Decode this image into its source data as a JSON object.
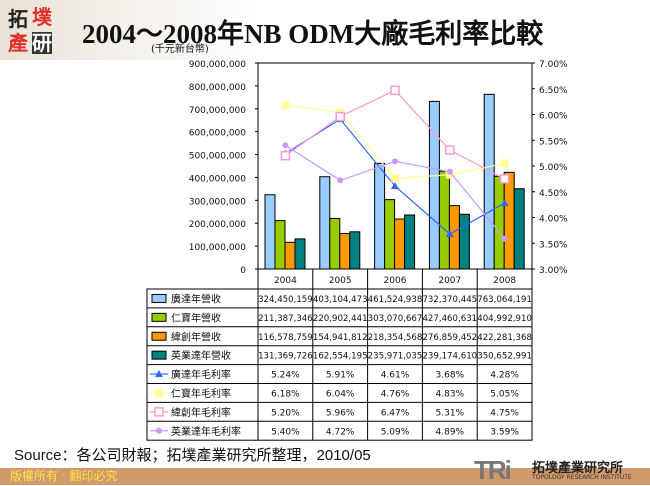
{
  "header": {
    "logo_text": "拓墣產研",
    "title": "2004～2008年NB ODM大廠毛利率比較"
  },
  "footer": {
    "source": "Source：各公司財報；拓墣產業研究所整理，2010/05",
    "copyright": "版權所有 ‧ 翻印必究",
    "institute_logo": "TRi",
    "institute_name": "拓墣產業研究所",
    "institute_name_en": "TOPOLOGY RESEARCH INSTITUTE"
  },
  "chart_data": {
    "type": "bar+line",
    "title": "2004～2008年NB ODM大廠毛利率比較",
    "ylabel": "(千元新台幣)",
    "ylim": [
      0,
      900000000
    ],
    "y2lim": [
      0.03,
      0.07
    ],
    "yticks": [
      "0",
      "100,000,000",
      "200,000,000",
      "300,000,000",
      "400,000,000",
      "500,000,000",
      "600,000,000",
      "700,000,000",
      "800,000,000",
      "900,000,000"
    ],
    "y2ticks": [
      "3.00%",
      "3.50%",
      "4.00%",
      "4.50%",
      "5.00%",
      "5.50%",
      "6.00%",
      "6.50%",
      "7.00%"
    ],
    "categories": [
      "2004",
      "2005",
      "2006",
      "2007",
      "2008"
    ],
    "legend": "data-table",
    "bar_series": [
      {
        "name": "廣達年營收",
        "color": "#99ccff",
        "values": [
          324450159,
          403104473,
          461524938,
          732370445,
          763064191
        ],
        "labels": [
          "324,450,159",
          "403,104,473",
          "461,524,938",
          "732,370,445",
          "763,064,191"
        ]
      },
      {
        "name": "仁寶年營收",
        "color": "#99cc00",
        "values": [
          211387346,
          220902441,
          303070667,
          427460631,
          404992910
        ],
        "labels": [
          "211,387,346",
          "220,902,441",
          "303,070,667",
          "427,460,631",
          "404,992,910"
        ]
      },
      {
        "name": "緯創年營收",
        "color": "#ff9900",
        "values": [
          116578759,
          154941812,
          218354568,
          276859452,
          422281368
        ],
        "labels": [
          "116,578,759",
          "154,941,812",
          "218,354,568",
          "276,859,452",
          "422,281,368"
        ]
      },
      {
        "name": "英業達年營收",
        "color": "#008080",
        "values": [
          131369726,
          162554195,
          235971035,
          239174610,
          350652991
        ],
        "labels": [
          "131,369,726",
          "162,554,195",
          "235,971,035",
          "239,174,610",
          "350,652,991"
        ]
      }
    ],
    "line_series": [
      {
        "name": "廣達年毛利率",
        "color": "#3366ff",
        "marker": "triangle",
        "values": [
          5.24,
          5.91,
          4.61,
          3.68,
          4.28
        ],
        "labels": [
          "5.24%",
          "5.91%",
          "4.61%",
          "3.68%",
          "4.28%"
        ]
      },
      {
        "name": "仁寶年毛利率",
        "color": "#ffff99",
        "marker": "square",
        "values": [
          6.18,
          6.04,
          4.76,
          4.83,
          5.05
        ],
        "labels": [
          "6.18%",
          "6.04%",
          "4.76%",
          "4.83%",
          "5.05%"
        ]
      },
      {
        "name": "緯創年毛利率",
        "color": "#ff99cc",
        "marker": "square-x",
        "values": [
          5.2,
          5.96,
          6.47,
          5.31,
          4.75
        ],
        "labels": [
          "5.20%",
          "5.96%",
          "6.47%",
          "5.31%",
          "4.75%"
        ]
      },
      {
        "name": "英業達年毛利率",
        "color": "#cc99ff",
        "marker": "circle",
        "values": [
          5.4,
          4.72,
          5.09,
          4.89,
          3.59
        ],
        "labels": [
          "5.40%",
          "4.72%",
          "5.09%",
          "4.89%",
          "3.59%"
        ]
      }
    ]
  }
}
